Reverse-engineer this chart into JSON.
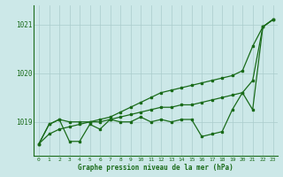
{
  "title": "Graphe pression niveau de la mer (hPa)",
  "bg_color": "#cce8e8",
  "line_color": "#1a6b1a",
  "grid_color": "#aacccc",
  "ylim": [
    1018.3,
    1021.4
  ],
  "yticks": [
    1019,
    1020,
    1021
  ],
  "xlim": [
    -0.5,
    23.5
  ],
  "xticks": [
    0,
    1,
    2,
    3,
    4,
    5,
    6,
    7,
    8,
    9,
    10,
    11,
    12,
    13,
    14,
    15,
    16,
    17,
    18,
    19,
    20,
    21,
    22,
    23
  ],
  "y_smooth": [
    1018.55,
    1018.75,
    1018.85,
    1018.9,
    1018.95,
    1019.0,
    1019.05,
    1019.1,
    1019.2,
    1019.3,
    1019.4,
    1019.5,
    1019.6,
    1019.65,
    1019.7,
    1019.75,
    1019.8,
    1019.85,
    1019.9,
    1019.95,
    1020.05,
    1020.55,
    1020.95,
    1021.1
  ],
  "y_mid": [
    1018.55,
    1018.95,
    1019.05,
    1019.0,
    1019.0,
    1019.0,
    1019.0,
    1019.05,
    1019.1,
    1019.15,
    1019.2,
    1019.25,
    1019.3,
    1019.3,
    1019.35,
    1019.35,
    1019.4,
    1019.45,
    1019.5,
    1019.55,
    1019.6,
    1019.85,
    1020.95,
    1021.1
  ],
  "y_volatile": [
    1018.55,
    1018.95,
    1019.05,
    1018.6,
    1018.6,
    1018.95,
    1018.85,
    1019.05,
    1019.0,
    1019.0,
    1019.1,
    1019.0,
    1019.05,
    1019.0,
    1019.05,
    1019.05,
    1018.7,
    1018.75,
    1018.8,
    1019.25,
    1019.6,
    1019.25,
    1020.95,
    1021.1
  ]
}
